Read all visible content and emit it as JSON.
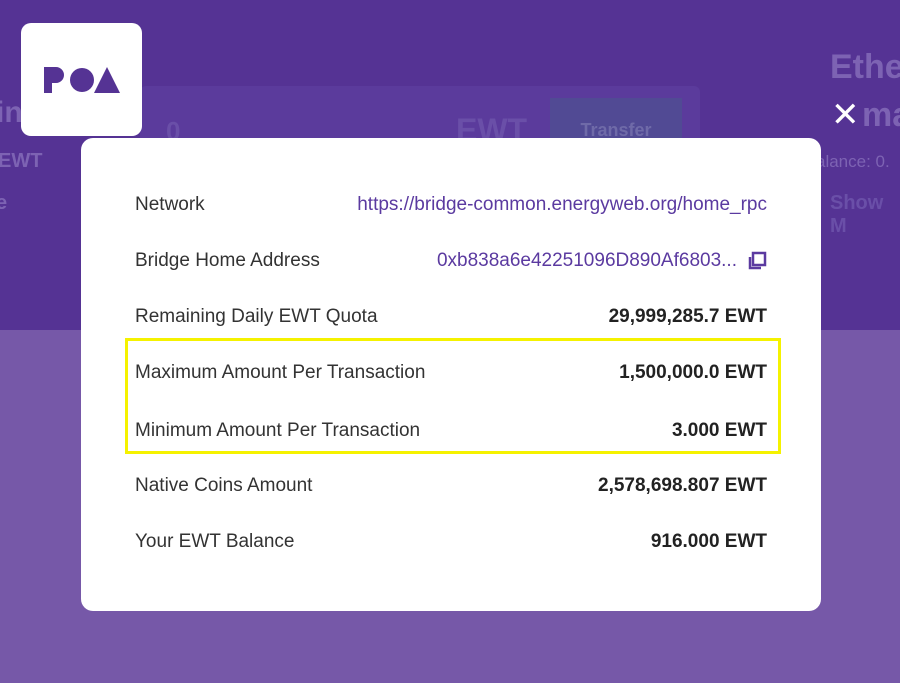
{
  "background": {
    "left_fragments": [
      "in",
      "EWT",
      "e"
    ],
    "input_value": "0",
    "token": "EWT",
    "transfer_label": "Transfer",
    "right_title": [
      "Ethe",
      "ma"
    ],
    "balance_fragment": "alance: 0.",
    "show_more": "Show M"
  },
  "logo": {
    "text": "POA"
  },
  "modal": {
    "rows": [
      {
        "label": "Network",
        "value": "https://bridge-common.energyweb.org/home_rpc"
      },
      {
        "label": "Bridge Home Address",
        "value": "0xb838a6e42251096D890Af6803..."
      },
      {
        "label": "Remaining Daily EWT Quota",
        "value": "29,999,285.7 EWT"
      },
      {
        "label": "Maximum Amount Per Transaction",
        "value": "1,500,000.0 EWT"
      },
      {
        "label": "Minimum Amount Per Transaction",
        "value": "3.000 EWT"
      },
      {
        "label": "Native Coins Amount",
        "value": "2,578,698.807 EWT"
      },
      {
        "label": "Your EWT Balance",
        "value": "916.000 EWT"
      }
    ]
  },
  "colors": {
    "accent": "#553394",
    "highlight": "#f5f200",
    "link": "#5b3aa0"
  }
}
